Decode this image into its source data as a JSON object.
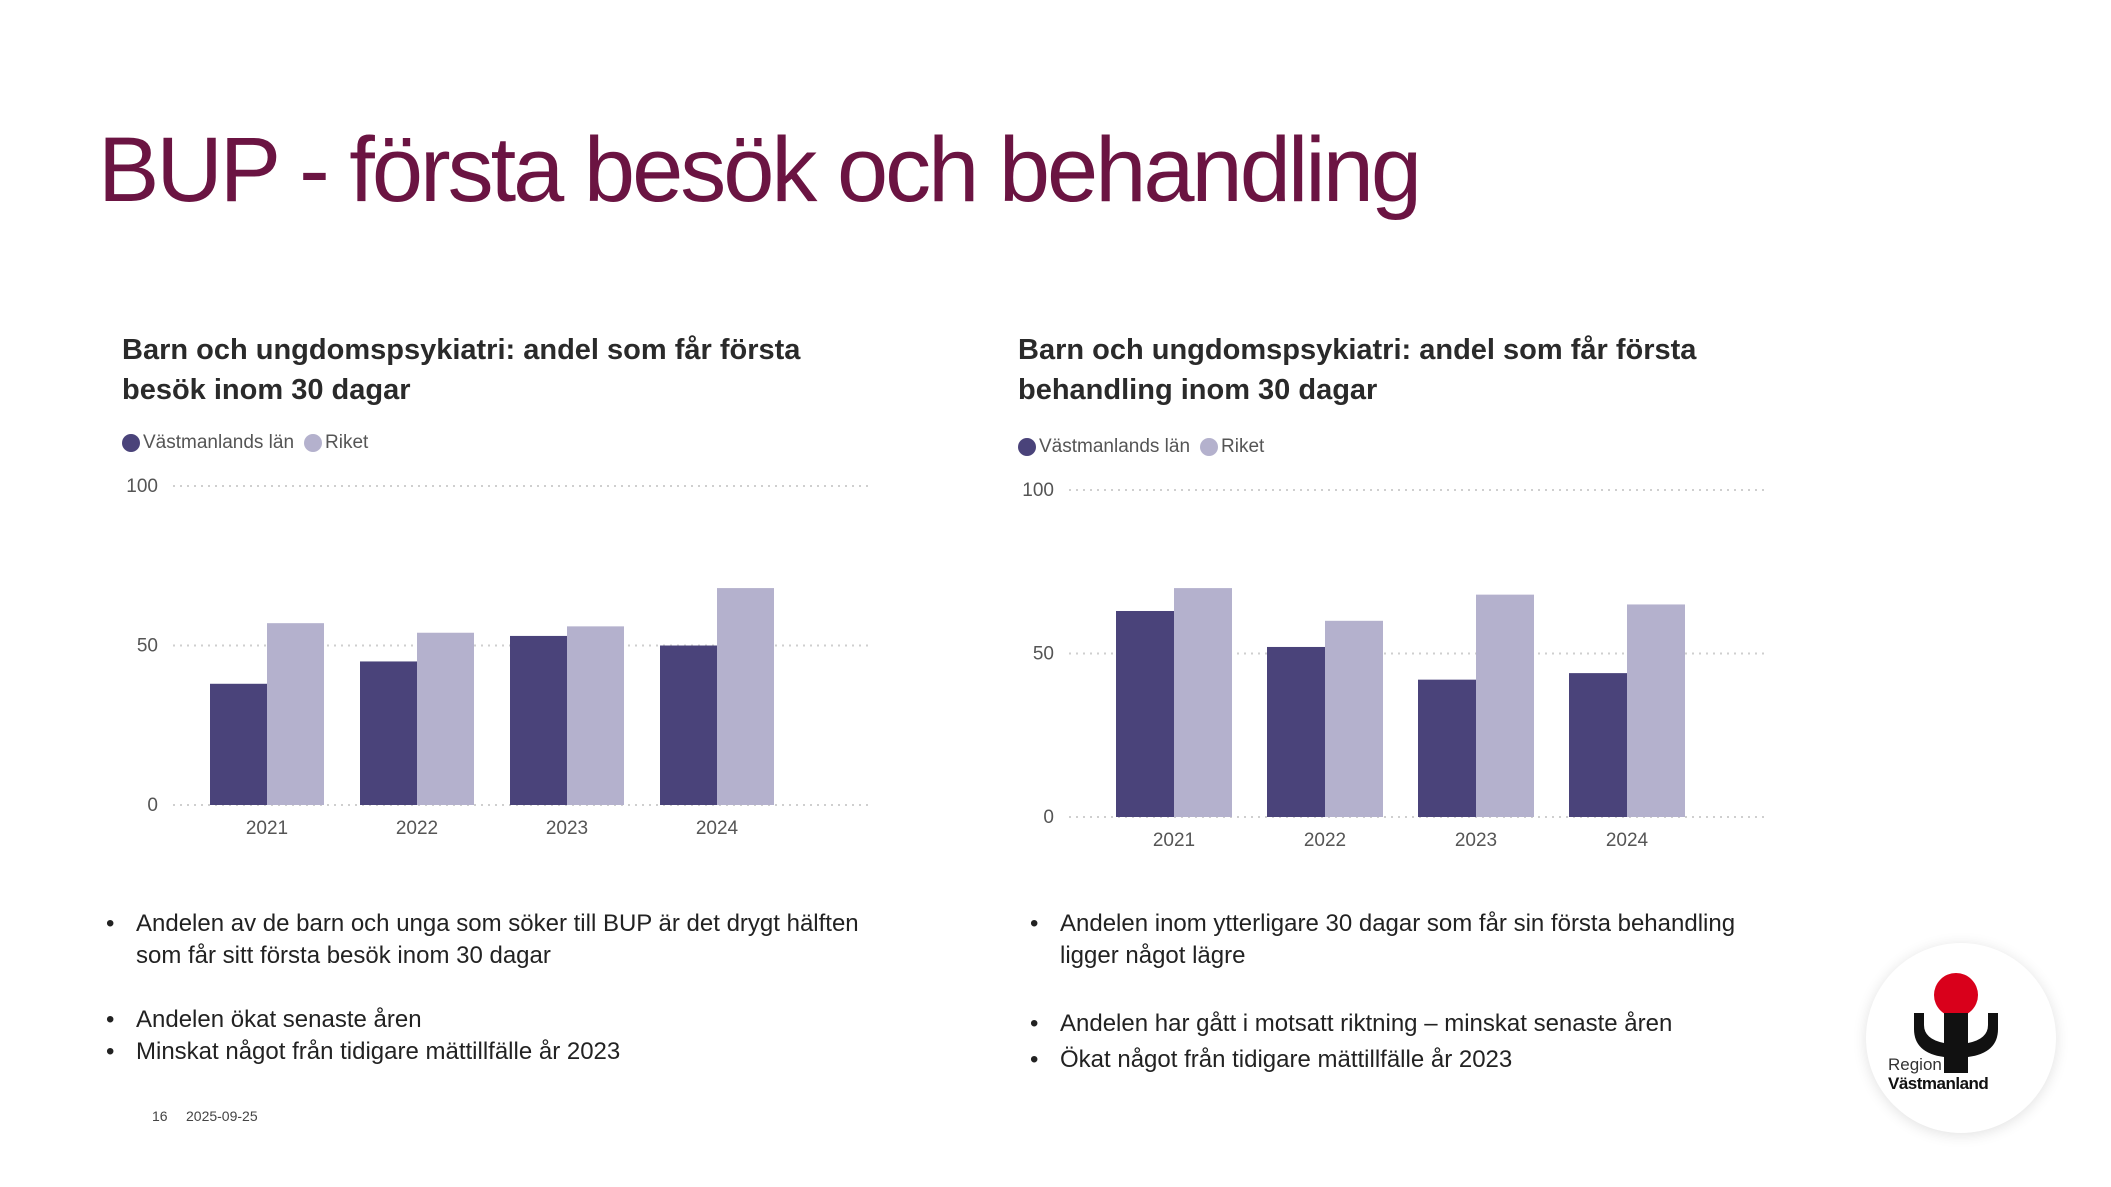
{
  "slide_title": "BUP - första besök och behandling",
  "colors": {
    "title": "#6b1442",
    "series_county": "#4a437a",
    "series_national": "#b4b1cd",
    "logo_red": "#d9001b"
  },
  "legend": {
    "county": "Västmanlands län",
    "national": "Riket"
  },
  "chart_data": [
    {
      "type": "bar",
      "title": "Barn och ungdomspsykiatri: andel som får första besök inom 30 dagar",
      "categories": [
        "2021",
        "2022",
        "2023",
        "2024"
      ],
      "series": [
        {
          "name": "Västmanlands län",
          "values": [
            38,
            45,
            53,
            50
          ]
        },
        {
          "name": "Riket",
          "values": [
            57,
            54,
            56,
            68
          ]
        }
      ],
      "ylim": [
        0,
        100
      ],
      "yticks": [
        "0",
        "50",
        "100"
      ],
      "grid": true,
      "legend_position": "top-left"
    },
    {
      "type": "bar",
      "title": "Barn och ungdomspsykiatri: andel som får första behandling inom 30 dagar",
      "categories": [
        "2021",
        "2022",
        "2023",
        "2024"
      ],
      "series": [
        {
          "name": "Västmanlands län",
          "values": [
            63,
            52,
            42,
            44
          ]
        },
        {
          "name": "Riket",
          "values": [
            70,
            60,
            68,
            65
          ]
        }
      ],
      "ylim": [
        0,
        100
      ],
      "yticks": [
        "0",
        "50",
        "100"
      ],
      "grid": true,
      "legend_position": "top-left"
    }
  ],
  "bullets_left": {
    "first": "Andelen av de barn och unga som söker till BUP är det drygt hälften som får sitt första besök inom 30 dagar",
    "second": "Andelen ökat senaste åren",
    "third": "Minskat något från tidigare mättillfälle år 2023"
  },
  "bullets_right": {
    "first": "Andelen inom ytterligare 30 dagar som får sin första behandling ligger något lägre",
    "second": "Andelen har gått i motsatt riktning – minskat senaste åren",
    "third": "Ökat något från tidigare mättillfälle år 2023"
  },
  "footer": {
    "page_number": "16",
    "date": "2025-09-25"
  },
  "logo": {
    "line1": "Region",
    "line2": "Västmanland"
  }
}
